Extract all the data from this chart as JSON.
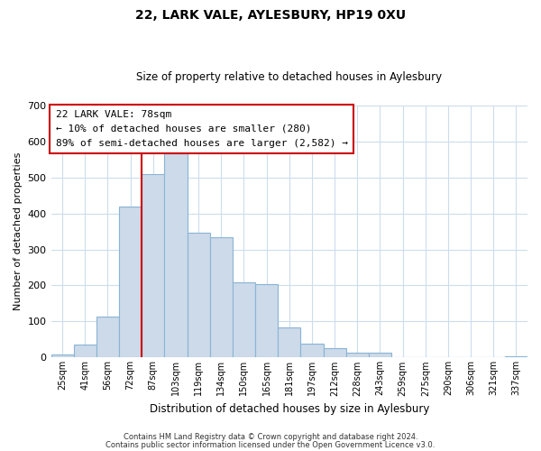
{
  "title": "22, LARK VALE, AYLESBURY, HP19 0XU",
  "subtitle": "Size of property relative to detached houses in Aylesbury",
  "xlabel": "Distribution of detached houses by size in Aylesbury",
  "ylabel": "Number of detached properties",
  "bar_color": "#ccdaea",
  "bar_edge_color": "#8ab4d4",
  "categories": [
    "25sqm",
    "41sqm",
    "56sqm",
    "72sqm",
    "87sqm",
    "103sqm",
    "119sqm",
    "134sqm",
    "150sqm",
    "165sqm",
    "181sqm",
    "197sqm",
    "212sqm",
    "228sqm",
    "243sqm",
    "259sqm",
    "275sqm",
    "290sqm",
    "306sqm",
    "321sqm",
    "337sqm"
  ],
  "values": [
    8,
    35,
    113,
    418,
    510,
    575,
    346,
    333,
    210,
    203,
    83,
    38,
    26,
    14,
    13,
    0,
    0,
    0,
    0,
    0,
    3
  ],
  "vline_x": 3.5,
  "vline_color": "#cc0000",
  "annotation_line1": "22 LARK VALE: 78sqm",
  "annotation_line2": "← 10% of detached houses are smaller (280)",
  "annotation_line3": "89% of semi-detached houses are larger (2,582) →",
  "ylim": [
    0,
    700
  ],
  "yticks": [
    0,
    100,
    200,
    300,
    400,
    500,
    600,
    700
  ],
  "footer_line1": "Contains HM Land Registry data © Crown copyright and database right 2024.",
  "footer_line2": "Contains public sector information licensed under the Open Government Licence v3.0.",
  "background_color": "#ffffff",
  "grid_color": "#ccddee"
}
